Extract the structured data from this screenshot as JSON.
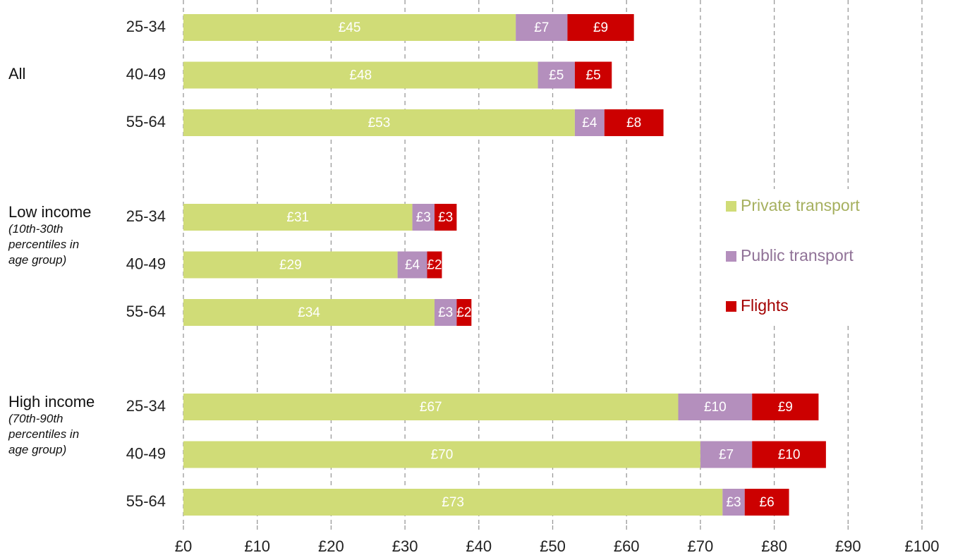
{
  "chart_data": {
    "type": "stacked_barh",
    "groups": [
      {
        "name": "All",
        "categories": [
          "25-34",
          "40-49",
          "55-64"
        ]
      },
      {
        "name": "Low income",
        "note": "(10th-30th percentiles in age group)",
        "categories": [
          "25-34",
          "40-49",
          "55-64"
        ]
      },
      {
        "name": "High income",
        "note": "(70th-90th percentiles in age group)",
        "categories": [
          "25-34",
          "40-49",
          "55-64"
        ]
      }
    ],
    "series": [
      {
        "name": "Private transport",
        "color": "#d0dc77",
        "values": [
          45,
          48,
          53,
          31,
          29,
          34,
          67,
          70,
          73
        ],
        "value_labels": [
          "£45",
          "£48",
          "£53",
          "£31",
          "£29",
          "£34",
          "£67",
          "£70",
          "£73"
        ]
      },
      {
        "name": "Public transport",
        "color": "#b48fbd",
        "values": [
          7,
          5,
          4,
          3,
          4,
          3,
          10,
          7,
          3
        ],
        "value_labels": [
          "£7",
          "£5",
          "£4",
          "£3",
          "£4",
          "£3",
          "£10",
          "£7",
          "£3"
        ]
      },
      {
        "name": "Flights",
        "color": "#cc0000",
        "values": [
          9,
          5,
          8,
          3,
          2,
          2,
          9,
          10,
          6
        ],
        "value_labels": [
          "£9",
          "£5",
          "£8",
          "£3",
          "£2",
          "£2",
          "£9",
          "£10",
          "£6"
        ]
      }
    ],
    "xlim": [
      0,
      100
    ],
    "xticks": [
      {
        "value": 0,
        "label": "£0"
      },
      {
        "value": 10,
        "label": "£10"
      },
      {
        "value": 20,
        "label": "£20"
      },
      {
        "value": 30,
        "label": "£30"
      },
      {
        "value": 40,
        "label": "£40"
      },
      {
        "value": 50,
        "label": "£50"
      },
      {
        "value": 60,
        "label": "£60"
      },
      {
        "value": 70,
        "label": "£70"
      },
      {
        "value": 80,
        "label": "£80"
      },
      {
        "value": 90,
        "label": "£90"
      },
      {
        "value": 100,
        "label": "£100"
      }
    ],
    "grid": true
  }
}
